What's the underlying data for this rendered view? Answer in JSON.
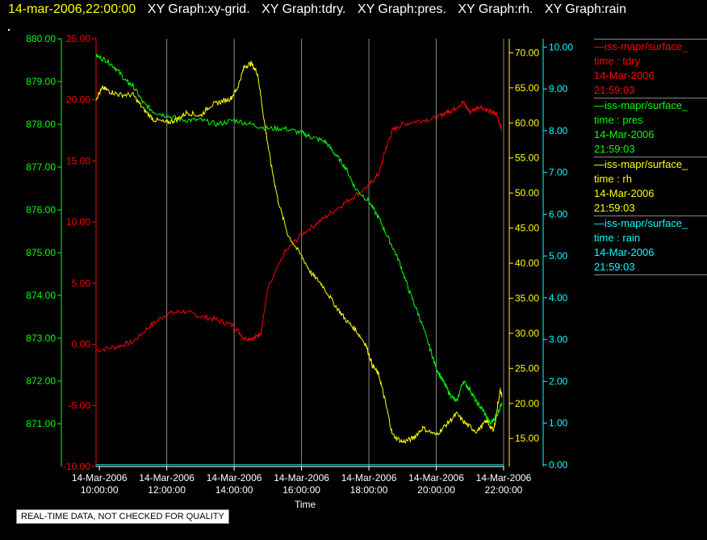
{
  "header": {
    "timestamp": "14-mar-2006,22:00:00",
    "titles": [
      "XY Graph:xy-grid.",
      "XY Graph:tdry.",
      "XY Graph:pres.",
      "XY Graph:rh.",
      "XY Graph:rain"
    ]
  },
  "footer": {
    "quality_note": "REAL-TIME DATA, NOT CHECKED FOR QUALITY"
  },
  "legend": [
    {
      "name": "—iss-mapr/surface_",
      "var": "time : tdry",
      "date": "14-Mar-2006",
      "time": "21:59:03",
      "color": "#ff0000"
    },
    {
      "name": "—iss-mapr/surface_",
      "var": "time : pres",
      "date": "14-Mar-2006",
      "time": "21:59:03",
      "color": "#00ff00"
    },
    {
      "name": "—iss-mapr/surface_",
      "var": "time : rh",
      "date": "14-Mar-2006",
      "time": "21:59:03",
      "color": "#ffff00"
    },
    {
      "name": "—iss-mapr/surface_",
      "var": "time : rain",
      "date": "14-Mar-2006",
      "time": "21:59:03",
      "color": "#00ffff"
    }
  ],
  "chart_data": {
    "type": "line",
    "xlabel": "Time",
    "x_ticks": [
      {
        "hour": 10,
        "date": "14-Mar-2006",
        "time": "10:00:00"
      },
      {
        "hour": 12,
        "date": "14-Mar-2006",
        "time": "12:00:00"
      },
      {
        "hour": 14,
        "date": "14-Mar-2006",
        "time": "14:00:00"
      },
      {
        "hour": 16,
        "date": "14-Mar-2006",
        "time": "16:00:00"
      },
      {
        "hour": 18,
        "date": "14-Mar-2006",
        "time": "18:00:00"
      },
      {
        "hour": 20,
        "date": "14-Mar-2006",
        "time": "20:00:00"
      },
      {
        "hour": 22,
        "date": "14-Mar-2006",
        "time": "22:00:00"
      }
    ],
    "xlim": [
      9.9,
      22.0
    ],
    "grid": "vertical",
    "axes": [
      {
        "id": "pres",
        "color": "#00ff00",
        "ylim": [
          870.0,
          880.0
        ],
        "ticks": [
          "871.00",
          "872.00",
          "873.00",
          "874.00",
          "875.00",
          "876.00",
          "877.00",
          "878.00",
          "879.00",
          "880.00"
        ]
      },
      {
        "id": "tdry",
        "color": "#ff0000",
        "ylim": [
          -10.0,
          25.0
        ],
        "ticks": [
          "-10.00",
          "-5.00",
          "0.00",
          "5.00",
          "10.00",
          "15.00",
          "20.00",
          "25.00"
        ]
      },
      {
        "id": "rh",
        "color": "#ffff00",
        "ylim": [
          11.0,
          72.0
        ],
        "ticks": [
          "15.00",
          "20.00",
          "25.00",
          "30.00",
          "35.00",
          "40.00",
          "45.00",
          "50.00",
          "55.00",
          "60.00",
          "65.00",
          "70.00"
        ]
      },
      {
        "id": "rain",
        "color": "#00ffff",
        "ylim": [
          -0.04,
          10.2
        ],
        "ticks": [
          "0.00",
          "1.00",
          "2.00",
          "3.00",
          "4.00",
          "5.00",
          "6.00",
          "7.00",
          "8.00",
          "9.00",
          "10.00"
        ]
      }
    ],
    "series": [
      {
        "name": "tdry",
        "axis": "tdry",
        "color": "#ff0000",
        "x": [
          9.9,
          10.5,
          11.0,
          11.5,
          12.0,
          12.5,
          13.0,
          13.5,
          14.0,
          14.3,
          14.6,
          14.8,
          15.0,
          15.5,
          16.0,
          16.5,
          17.0,
          17.5,
          18.0,
          18.3,
          18.5,
          18.7,
          19.0,
          19.5,
          20.0,
          20.3,
          20.5,
          20.8,
          21.0,
          21.3,
          21.6,
          21.8,
          21.95
        ],
        "y": [
          -0.5,
          -0.2,
          0.2,
          1.5,
          2.5,
          2.7,
          2.3,
          2.0,
          1.5,
          0.5,
          0.5,
          1.0,
          4.5,
          7.5,
          9.0,
          10.0,
          11.0,
          12.0,
          13.0,
          14.0,
          16.0,
          17.5,
          18.0,
          18.3,
          18.5,
          19.0,
          19.2,
          19.8,
          19.0,
          19.5,
          19.0,
          18.8,
          17.5
        ]
      },
      {
        "name": "pres",
        "axis": "pres",
        "color": "#00ff00",
        "x": [
          9.9,
          10.2,
          10.5,
          10.8,
          11.0,
          11.3,
          11.6,
          12.0,
          12.5,
          13.0,
          13.5,
          14.0,
          14.5,
          15.0,
          15.5,
          16.0,
          16.3,
          16.7,
          17.0,
          17.3,
          17.6,
          18.0,
          18.3,
          18.6,
          18.9,
          19.2,
          19.5,
          19.8,
          20.0,
          20.2,
          20.4,
          20.6,
          20.8,
          21.0,
          21.2,
          21.4,
          21.6,
          21.8,
          21.95
        ],
        "y": [
          879.6,
          879.5,
          879.3,
          879.0,
          878.9,
          878.5,
          878.3,
          878.2,
          878.1,
          878.1,
          878.0,
          878.1,
          878.0,
          877.9,
          877.9,
          877.8,
          877.7,
          877.6,
          877.3,
          877.0,
          876.5,
          876.2,
          875.8,
          875.3,
          874.8,
          874.1,
          873.5,
          872.8,
          872.3,
          872.0,
          871.7,
          871.5,
          872.0,
          871.8,
          871.5,
          871.3,
          871.0,
          871.2,
          871.5
        ]
      },
      {
        "name": "rh",
        "axis": "rh",
        "color": "#ffff00",
        "x": [
          9.9,
          10.1,
          10.3,
          10.6,
          11.0,
          11.3,
          11.6,
          12.0,
          12.3,
          12.6,
          13.0,
          13.3,
          13.6,
          13.9,
          14.1,
          14.3,
          14.5,
          14.7,
          14.9,
          15.1,
          15.3,
          15.6,
          16.0,
          16.3,
          16.6,
          17.0,
          17.3,
          17.6,
          17.9,
          18.1,
          18.3,
          18.5,
          18.7,
          19.0,
          19.3,
          19.6,
          20.0,
          20.3,
          20.6,
          20.9,
          21.2,
          21.5,
          21.7,
          21.9,
          21.95
        ],
        "y": [
          63.5,
          65.0,
          64.5,
          64.0,
          64.0,
          62.0,
          60.5,
          60.0,
          60.5,
          61.5,
          61.0,
          62.5,
          63.0,
          63.5,
          65.0,
          68.0,
          68.5,
          67.0,
          60.0,
          54.0,
          49.0,
          44.0,
          41.0,
          38.5,
          37.0,
          34.0,
          32.0,
          30.5,
          28.5,
          25.5,
          24.0,
          20.0,
          15.5,
          14.5,
          15.0,
          16.5,
          15.5,
          17.0,
          18.5,
          17.0,
          16.0,
          17.5,
          16.0,
          22.0,
          21.0
        ]
      },
      {
        "name": "rain",
        "axis": "rain",
        "color": "#00ffff",
        "x": [
          9.9,
          22.0
        ],
        "y": [
          0.0,
          0.0
        ]
      }
    ]
  }
}
